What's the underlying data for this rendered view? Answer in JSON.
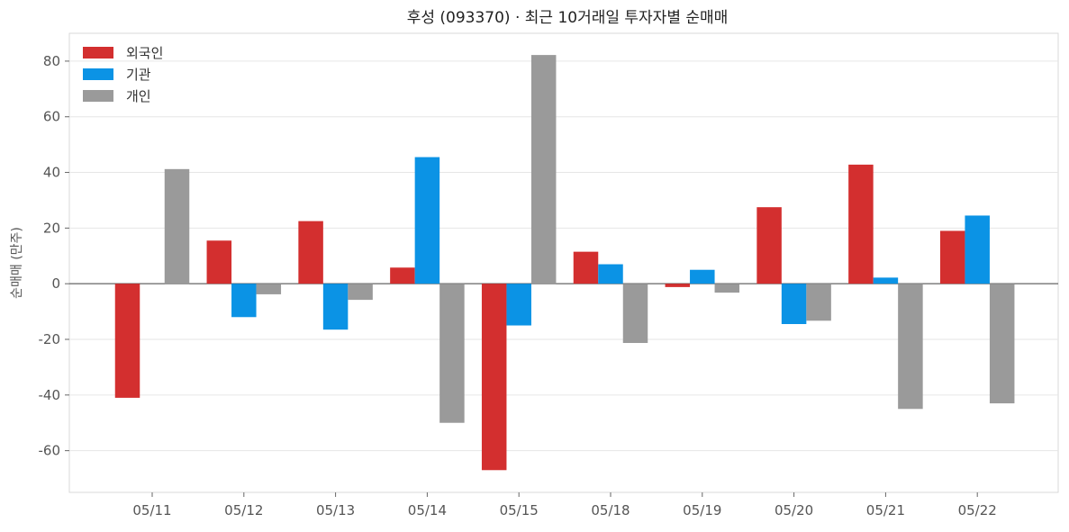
{
  "chart_data": {
    "type": "bar",
    "title": "후성 (093370) · 최근 10거래일 투자자별 순매매",
    "xlabel": "",
    "ylabel": "순매매 (만주)",
    "categories": [
      "05/11",
      "05/12",
      "05/13",
      "05/14",
      "05/15",
      "05/18",
      "05/19",
      "05/20",
      "05/21",
      "05/22"
    ],
    "series": [
      {
        "name": "외국인",
        "color": "#d32f2f",
        "values": [
          -41,
          15.5,
          22.5,
          5.8,
          -67,
          11.5,
          -1.2,
          27.5,
          42.8,
          19
        ]
      },
      {
        "name": "기관",
        "color": "#0b93e5",
        "values": [
          0,
          -12,
          -16.5,
          45.5,
          -15,
          7,
          5,
          -14.5,
          2.2,
          24.5
        ]
      },
      {
        "name": "개인",
        "color": "#9a9a9a",
        "values": [
          41.2,
          -3.8,
          -5.8,
          -50,
          82.2,
          -21.3,
          -3.2,
          -13.3,
          -45,
          -43
        ]
      }
    ],
    "ylim": [
      -75,
      90
    ],
    "yticks": [
      -60,
      -40,
      -20,
      0,
      20,
      40,
      60,
      80
    ],
    "grid": true,
    "legend_position": "top-left"
  }
}
